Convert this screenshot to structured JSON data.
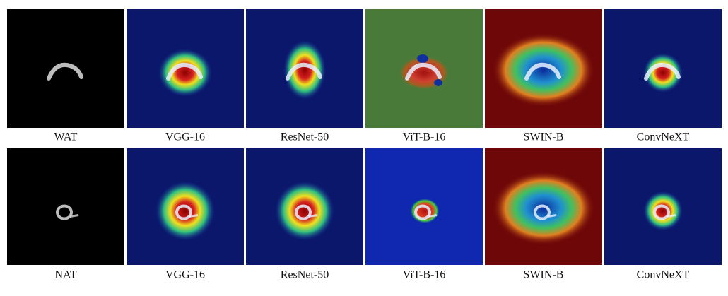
{
  "rows": [
    {
      "panels": [
        "WAT",
        "VGG-16",
        "ResNet-50",
        "ViT-B-16",
        "SWIN-B",
        "ConvNeXT"
      ]
    },
    {
      "panels": [
        "NAT",
        "VGG-16",
        "ResNet-50",
        "ViT-B-16",
        "SWIN-B",
        "ConvNeXT"
      ]
    }
  ]
}
